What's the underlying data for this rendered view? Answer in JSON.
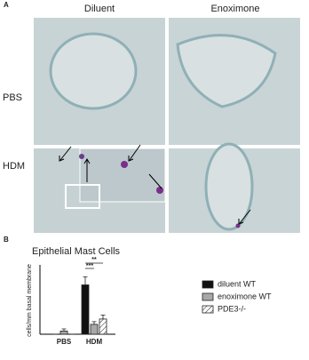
{
  "panel_a": {
    "label": "A",
    "columns": [
      "Diluent",
      "Enoximone"
    ],
    "rows": [
      "PBS",
      "HDM"
    ]
  },
  "chart_data": {
    "label": "B",
    "type": "bar",
    "title": "Epithelial Mast Cells",
    "y_label": "cells/mm basal membrane",
    "categories": [
      "PBS",
      "HDM"
    ],
    "series": [
      {
        "name": "diluent WT",
        "color": "#111111",
        "pattern": "solid",
        "values": [
          0,
          18.5
        ],
        "errors": [
          0,
          3
        ]
      },
      {
        "name": "enoximone WT",
        "color": "#a8a8a8",
        "pattern": "solid",
        "values": [
          1.2,
          3.7
        ],
        "errors": [
          0.8,
          1
        ]
      },
      {
        "name": "PDE3-/-",
        "color": "#ffffff",
        "pattern": "hatch",
        "values": [
          0,
          5.7
        ],
        "errors": [
          0,
          1.5
        ]
      }
    ],
    "annotations": [
      "***",
      "**"
    ],
    "ylim": [
      0,
      25
    ]
  }
}
